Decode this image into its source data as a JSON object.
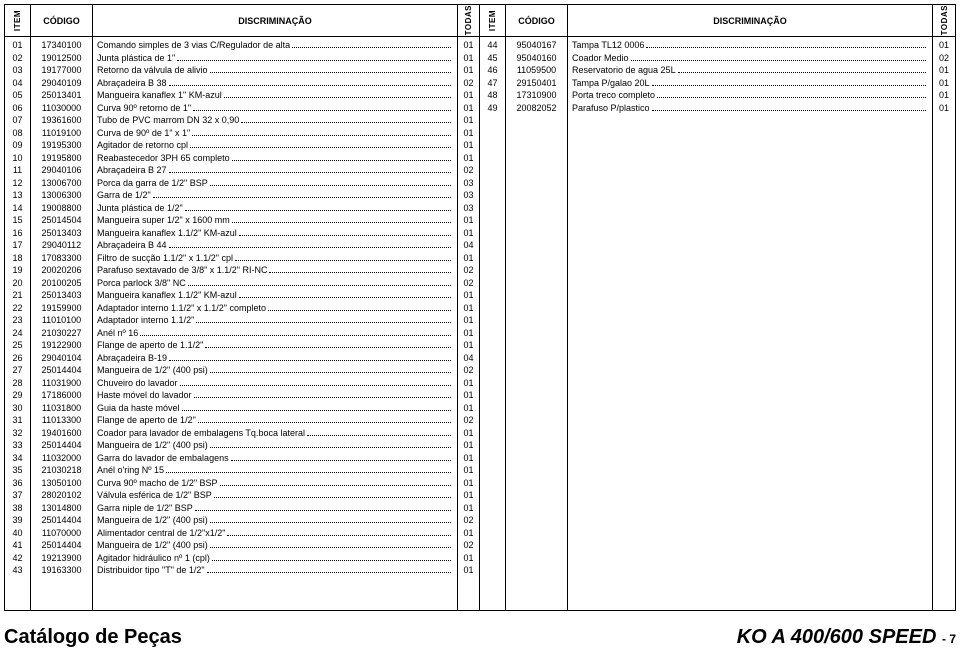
{
  "headers": {
    "item": "ITEM",
    "codigo": "CÓDIGO",
    "discriminacao": "DISCRIMINAÇÃO",
    "todas": "TODAS"
  },
  "left_rows": [
    {
      "item": "01",
      "cod": "17340100",
      "disc": "Comando simples de 3 vias C/Regulador de alta",
      "qty": "01"
    },
    {
      "item": "02",
      "cod": "19012500",
      "disc": "Junta plástica de 1\"",
      "qty": "01"
    },
    {
      "item": "03",
      "cod": "19177000",
      "disc": "Retorno da válvula de alivio",
      "qty": "01"
    },
    {
      "item": "04",
      "cod": "29040109",
      "disc": "Abraçadeira B 38",
      "qty": "02"
    },
    {
      "item": "05",
      "cod": "25013401",
      "disc": "Mangueira kanaflex 1\" KM-azul",
      "qty": "01"
    },
    {
      "item": "06",
      "cod": "11030000",
      "disc": "Curva 90º retorno de 1\"",
      "qty": "01"
    },
    {
      "item": "07",
      "cod": "19361600",
      "disc": "Tubo de PVC marrom DN 32 x 0,90",
      "qty": "01"
    },
    {
      "item": "08",
      "cod": "11019100",
      "disc": "Curva de 90º de 1\" x 1\"",
      "qty": "01"
    },
    {
      "item": "09",
      "cod": "19195300",
      "disc": "Agitador de retorno cpl",
      "qty": "01"
    },
    {
      "item": "10",
      "cod": "19195800",
      "disc": "Reabastecedor 3PH 65 completo",
      "qty": "01"
    },
    {
      "item": "11",
      "cod": "29040106",
      "disc": "Abraçadeira B 27",
      "qty": "02"
    },
    {
      "item": "12",
      "cod": "13006700",
      "disc": "Porca da garra de 1/2\" BSP",
      "qty": "03"
    },
    {
      "item": "13",
      "cod": "13006300",
      "disc": "Garra de 1/2\"",
      "qty": "03"
    },
    {
      "item": "14",
      "cod": "19008800",
      "disc": "Junta plástica de 1/2\"",
      "qty": "03"
    },
    {
      "item": "15",
      "cod": "25014504",
      "disc": "Mangueira super 1/2\" x 1600 mm",
      "qty": "01"
    },
    {
      "item": "16",
      "cod": "25013403",
      "disc": "Mangueira kanaflex 1.1/2\" KM-azul",
      "qty": "01"
    },
    {
      "item": "17",
      "cod": "29040112",
      "disc": "Abraçadeira B 44",
      "qty": "04"
    },
    {
      "item": "18",
      "cod": "17083300",
      "disc": "Filtro de sucção 1.1/2\" x 1.1/2\" cpl",
      "qty": "01"
    },
    {
      "item": "19",
      "cod": "20020206",
      "disc": "Parafuso sextavado de 3/8\" x 1.1/2\" RI-NC",
      "qty": "02"
    },
    {
      "item": "20",
      "cod": "20100205",
      "disc": "Porca parlock 3/8\" NC",
      "qty": "02"
    },
    {
      "item": "21",
      "cod": "25013403",
      "disc": "Mangueira kanaflex 1.1/2\" KM-azul",
      "qty": "01"
    },
    {
      "item": "22",
      "cod": "19159900",
      "disc": "Adaptador interno 1.1/2\" x 1.1/2\" completo",
      "qty": "01"
    },
    {
      "item": "23",
      "cod": "11010100",
      "disc": "Adaptador interno 1.1/2\"",
      "qty": "01"
    },
    {
      "item": "24",
      "cod": "21030227",
      "disc": "Anél nº 16",
      "qty": "01"
    },
    {
      "item": "25",
      "cod": "19122900",
      "disc": "Flange de aperto de 1.1/2\"",
      "qty": "01"
    },
    {
      "item": "26",
      "cod": "29040104",
      "disc": "Abraçadeira B-19",
      "qty": "04"
    },
    {
      "item": "27",
      "cod": "25014404",
      "disc": "Mangueira de 1/2\" (400 psi)",
      "qty": "02"
    },
    {
      "item": "28",
      "cod": "11031900",
      "disc": "Chuveiro do lavador",
      "qty": "01"
    },
    {
      "item": "29",
      "cod": "17186000",
      "disc": "Haste móvel do lavador",
      "qty": "01"
    },
    {
      "item": "30",
      "cod": "11031800",
      "disc": "Guia da haste móvel",
      "qty": "01"
    },
    {
      "item": "31",
      "cod": "11013300",
      "disc": "Flange de aperto de 1/2\"",
      "qty": "02"
    },
    {
      "item": "32",
      "cod": "19401600",
      "disc": "Coador para lavador de embalagens Tq.boca lateral",
      "qty": "01"
    },
    {
      "item": "33",
      "cod": "25014404",
      "disc": "Mangueira de 1/2\" (400 psi)",
      "qty": "01"
    },
    {
      "item": "34",
      "cod": "11032000",
      "disc": "Garra do lavador de embalagens",
      "qty": "01"
    },
    {
      "item": "35",
      "cod": "21030218",
      "disc": "Anél o'ring Nº 15",
      "qty": "01"
    },
    {
      "item": "36",
      "cod": "13050100",
      "disc": "Curva 90º macho de 1/2\" BSP",
      "qty": "01"
    },
    {
      "item": "37",
      "cod": "28020102",
      "disc": "Válvula esférica de 1/2\" BSP",
      "qty": "01"
    },
    {
      "item": "38",
      "cod": "13014800",
      "disc": "Garra niple de 1/2\" BSP",
      "qty": "01"
    },
    {
      "item": "39",
      "cod": "25014404",
      "disc": "Mangueira de 1/2\" (400 psi)",
      "qty": "02"
    },
    {
      "item": "40",
      "cod": "11070000",
      "disc": "Alimentador central de 1/2\"x1/2\"",
      "qty": "01"
    },
    {
      "item": "41",
      "cod": "25014404",
      "disc": "Mangueira de 1/2\" (400 psi)",
      "qty": "02"
    },
    {
      "item": "42",
      "cod": "19213900",
      "disc": "Agitador hidráulico nº 1 (cpl)",
      "qty": "01"
    },
    {
      "item": "43",
      "cod": "19163300",
      "disc": "Distribuidor tipo \"T\" de 1/2\"",
      "qty": "01"
    }
  ],
  "right_rows": [
    {
      "item": "44",
      "cod": "95040167",
      "disc": "Tampa TL12 0006",
      "qty": "01"
    },
    {
      "item": "45",
      "cod": "95040160",
      "disc": "Coador Medio",
      "qty": "02"
    },
    {
      "item": "46",
      "cod": "11059500",
      "disc": "Reservatorio de agua 25L",
      "qty": "01"
    },
    {
      "item": "47",
      "cod": "29150401",
      "disc": "Tampa P/galao 20L",
      "qty": "01"
    },
    {
      "item": "48",
      "cod": "17310900",
      "disc": "Porta treco completo",
      "qty": "01"
    },
    {
      "item": "49",
      "cod": "20082052",
      "disc": "Parafuso P/plastico",
      "qty": "01"
    }
  ],
  "footer": {
    "left": "Catálogo de Peças",
    "right": "KO A 400/600 SPEED",
    "page": "- 7"
  }
}
